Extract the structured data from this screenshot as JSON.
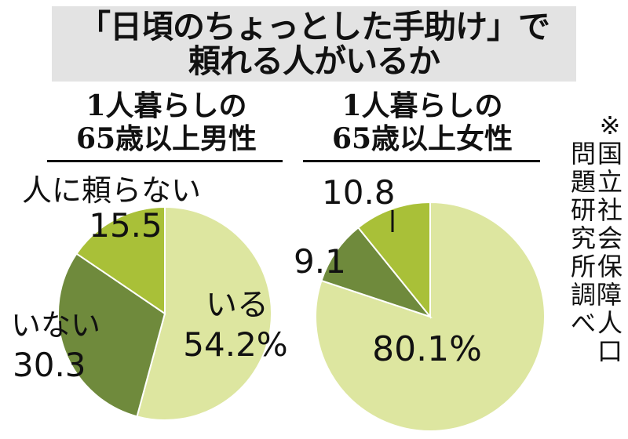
{
  "title": {
    "line1": "「日頃のちょっとした手助け」で",
    "line2": "頼れる人がいるか"
  },
  "source_note": {
    "col1": "※国立社会保障・人口",
    "col2": "問題研究所調べ"
  },
  "chart_data": [
    {
      "type": "pie",
      "title": [
        "1人暮らしの",
        "65歳以上男性"
      ],
      "slices": [
        {
          "name": "いる",
          "value": 54.2,
          "label": "54.2%",
          "color": "#dde6a0"
        },
        {
          "name": "いない",
          "value": 30.3,
          "label": "30.3",
          "color": "#6f8a3c"
        },
        {
          "name": "人に頼らない",
          "value": 15.5,
          "label": "15.5",
          "color": "#a9c038"
        }
      ]
    },
    {
      "type": "pie",
      "title": [
        "1人暮らしの",
        "65歳以上女性"
      ],
      "slices": [
        {
          "name": "いる",
          "value": 80.1,
          "label": "80.1%",
          "color": "#dde6a0"
        },
        {
          "name": "いない",
          "value": 9.1,
          "label": "9.1",
          "color": "#6f8a3c"
        },
        {
          "name": "人に頼らない",
          "value": 10.8,
          "label": "10.8",
          "color": "#a9c038"
        }
      ]
    }
  ]
}
